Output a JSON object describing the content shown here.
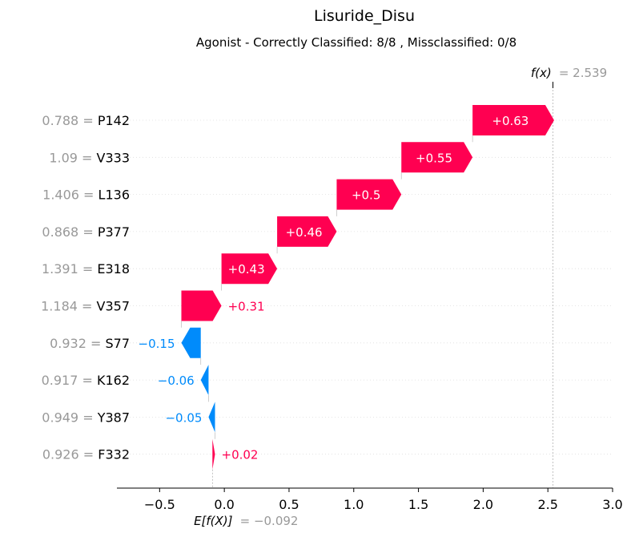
{
  "chart_data": {
    "type": "waterfall",
    "title": "Lisuride_Disu",
    "subtitle": "Agonist - Correctly Classified: 8/8 , Missclassified: 0/8",
    "base_value": -0.092,
    "base_label": "E[f(X)]",
    "base_value_text": "= −0.092",
    "output_value": 2.539,
    "output_label": "f(x)",
    "output_value_text": "= 2.539",
    "xlim": [
      -0.83,
      3.0
    ],
    "xticks": [
      -0.5,
      0.0,
      0.5,
      1.0,
      1.5,
      2.0,
      2.5,
      3.0
    ],
    "xtick_labels": [
      "−0.5",
      "0.0",
      "0.5",
      "1.0",
      "1.5",
      "2.0",
      "2.5",
      "3.0"
    ],
    "features": [
      {
        "name": "P142",
        "value": "0.788",
        "contribution": 0.63,
        "label": "+0.63"
      },
      {
        "name": "V333",
        "value": "1.09",
        "contribution": 0.55,
        "label": "+0.55"
      },
      {
        "name": "L136",
        "value": "1.406",
        "contribution": 0.5,
        "label": "+0.5"
      },
      {
        "name": "P377",
        "value": "0.868",
        "contribution": 0.46,
        "label": "+0.46"
      },
      {
        "name": "E318",
        "value": "1.391",
        "contribution": 0.43,
        "label": "+0.43"
      },
      {
        "name": "V357",
        "value": "1.184",
        "contribution": 0.31,
        "label": "+0.31"
      },
      {
        "name": "S77",
        "value": "0.932",
        "contribution": -0.15,
        "label": "−0.15"
      },
      {
        "name": "K162",
        "value": "0.917",
        "contribution": -0.06,
        "label": "−0.06"
      },
      {
        "name": "Y387",
        "value": "0.949",
        "contribution": -0.05,
        "label": "−0.05"
      },
      {
        "name": "F332",
        "value": "0.926",
        "contribution": 0.02,
        "label": "+0.02"
      }
    ],
    "colors": {
      "positive": "#ff0051",
      "negative": "#008bfb",
      "muted": "#999999"
    }
  }
}
